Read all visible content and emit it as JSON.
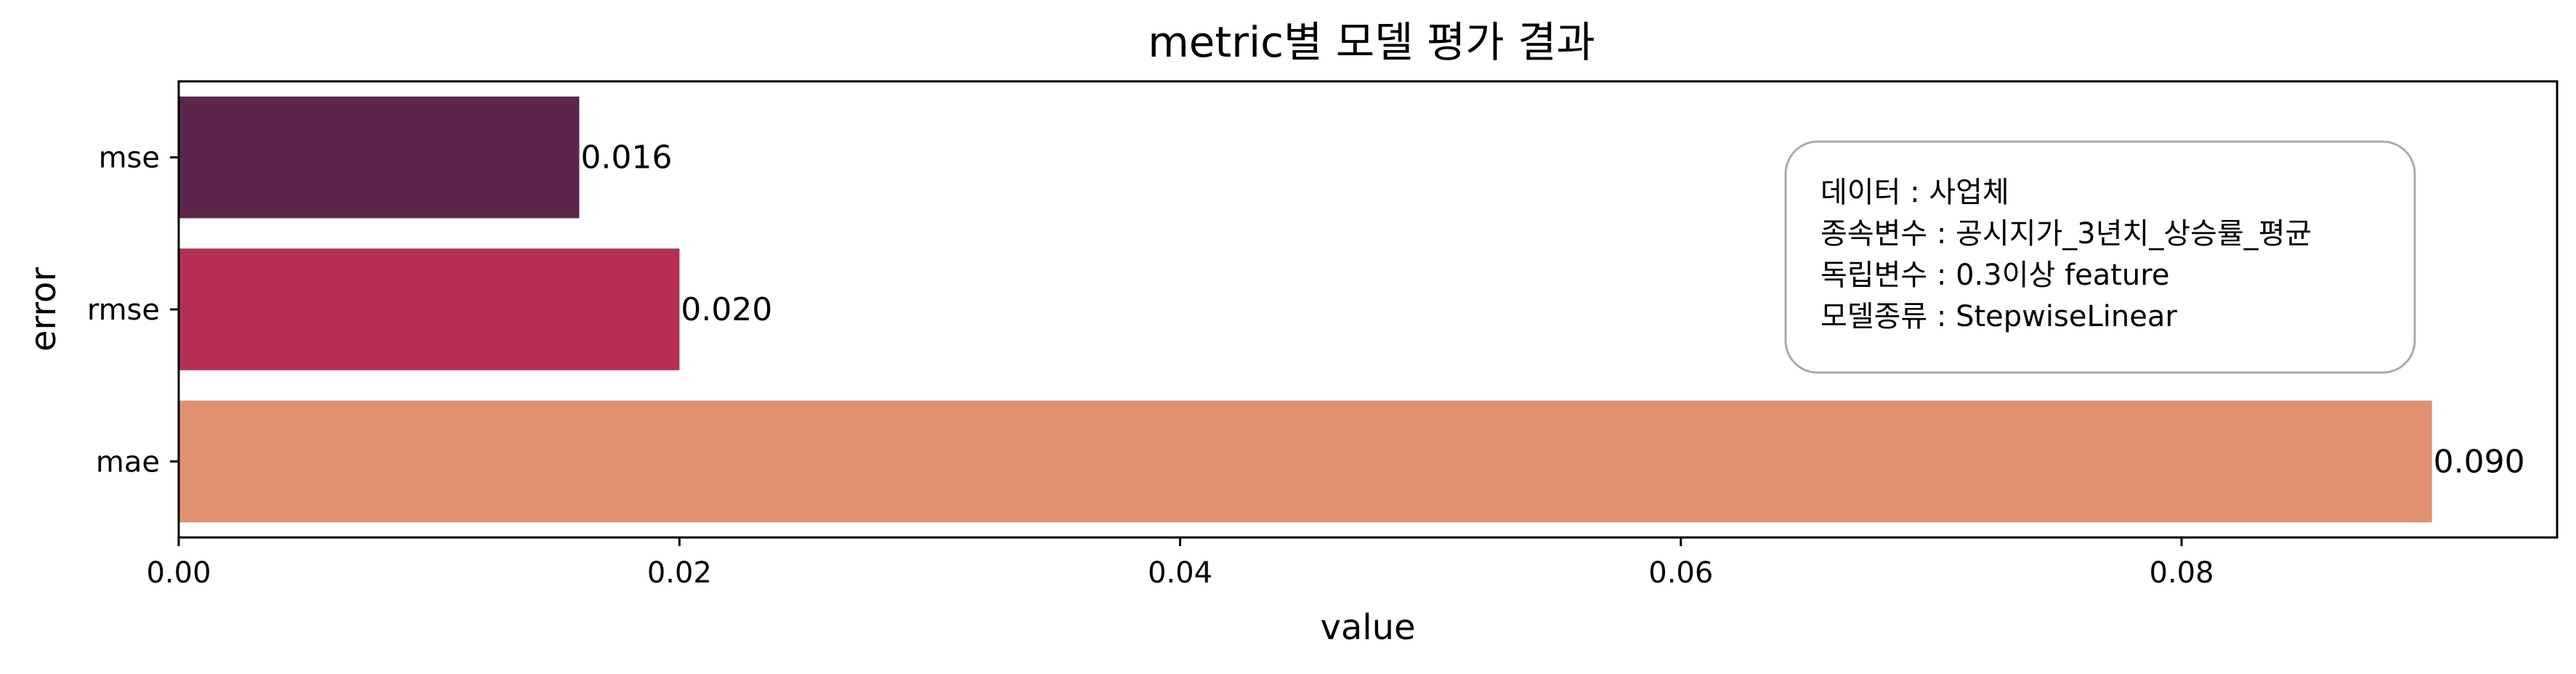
{
  "chart_data": {
    "type": "bar",
    "orientation": "horizontal",
    "title": "metric별 모델 평가 결과",
    "xlabel": "value",
    "ylabel": "error",
    "categories": [
      "mse",
      "rmse",
      "mae"
    ],
    "values": [
      0.016,
      0.02,
      0.09
    ],
    "value_labels": [
      "0.016",
      "0.020",
      "0.090"
    ],
    "bar_colors": [
      "#5c264b",
      "#b52f55",
      "#e29072"
    ],
    "xlim": [
      0,
      0.095
    ],
    "xticks": [
      0.0,
      0.02,
      0.04,
      0.06,
      0.08
    ],
    "xtick_labels": [
      "0.00",
      "0.02",
      "0.04",
      "0.06",
      "0.08"
    ],
    "grid": false,
    "annotation": {
      "placement": "upper-right",
      "lines": [
        "데이터 : 사업체",
        "종속변수 : 공시지가_3년치_상승률_평균",
        "독립변수 : 0.3이상 feature",
        "모델종류 : StepwiseLinear"
      ]
    }
  }
}
